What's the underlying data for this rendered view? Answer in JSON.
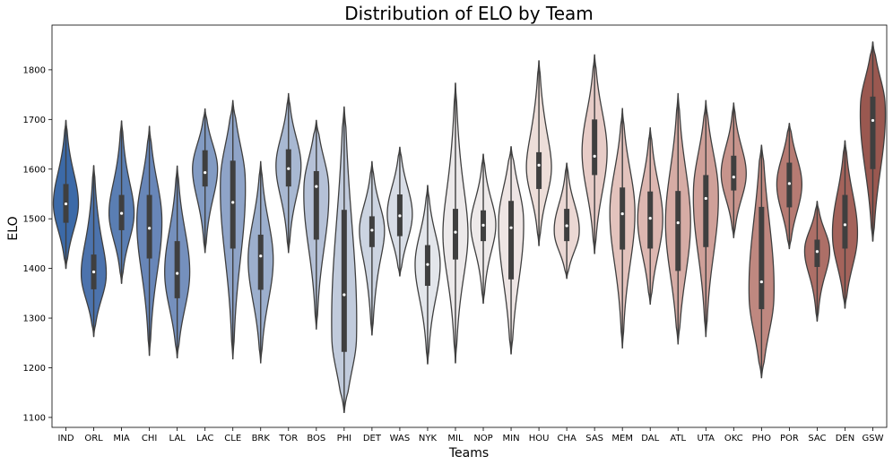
{
  "chart_data": {
    "type": "violin",
    "title": "Distribution of ELO by Team",
    "xlabel": "Teams",
    "ylabel": "ELO",
    "ylim": [
      1080,
      1890
    ],
    "yticks": [
      1100,
      1200,
      1300,
      1400,
      1500,
      1600,
      1700,
      1800
    ],
    "grid": false,
    "legend": "none",
    "teams": [
      {
        "name": "IND",
        "color": "#3c6aa8",
        "min": 1400,
        "max": 1698,
        "q1": 1492,
        "median": 1530,
        "q3": 1570,
        "mode": 1530
      },
      {
        "name": "ORL",
        "color": "#4c73ad",
        "min": 1263,
        "max": 1607,
        "q1": 1358,
        "median": 1393,
        "q3": 1428,
        "mode": 1385
      },
      {
        "name": "MIA",
        "color": "#5a7eb3",
        "min": 1370,
        "max": 1697,
        "q1": 1477,
        "median": 1511,
        "q3": 1548,
        "mode": 1510
      },
      {
        "name": "CHI",
        "color": "#6886b8",
        "min": 1225,
        "max": 1686,
        "q1": 1420,
        "median": 1481,
        "q3": 1548,
        "mode": 1500
      },
      {
        "name": "LAL",
        "color": "#7590bd",
        "min": 1220,
        "max": 1606,
        "q1": 1340,
        "median": 1390,
        "q3": 1455,
        "mode": 1390
      },
      {
        "name": "LAC",
        "color": "#829bc3",
        "min": 1432,
        "max": 1721,
        "q1": 1565,
        "median": 1593,
        "q3": 1638,
        "mode": 1600
      },
      {
        "name": "CLE",
        "color": "#8fa4c8",
        "min": 1218,
        "max": 1738,
        "q1": 1440,
        "median": 1533,
        "q3": 1617,
        "mode": 1580
      },
      {
        "name": "BRK",
        "color": "#9cafcd",
        "min": 1210,
        "max": 1615,
        "q1": 1357,
        "median": 1425,
        "q3": 1468,
        "mode": 1420
      },
      {
        "name": "TOR",
        "color": "#a8b8d2",
        "min": 1432,
        "max": 1752,
        "q1": 1565,
        "median": 1601,
        "q3": 1640,
        "mode": 1610
      },
      {
        "name": "BOS",
        "color": "#b5c1d7",
        "min": 1278,
        "max": 1698,
        "q1": 1458,
        "median": 1565,
        "q3": 1596,
        "mode": 1565
      },
      {
        "name": "PHI",
        "color": "#c1cbdc",
        "min": 1110,
        "max": 1725,
        "q1": 1232,
        "median": 1347,
        "q3": 1518,
        "mode": 1260
      },
      {
        "name": "DET",
        "color": "#ccd4e1",
        "min": 1266,
        "max": 1615,
        "q1": 1443,
        "median": 1477,
        "q3": 1505,
        "mode": 1480
      },
      {
        "name": "WAS",
        "color": "#d8dde6",
        "min": 1385,
        "max": 1644,
        "q1": 1465,
        "median": 1506,
        "q3": 1549,
        "mode": 1510
      },
      {
        "name": "NYK",
        "color": "#e3e6eb",
        "min": 1208,
        "max": 1567,
        "q1": 1365,
        "median": 1408,
        "q3": 1447,
        "mode": 1410
      },
      {
        "name": "MIL",
        "color": "#ece9ea",
        "min": 1210,
        "max": 1773,
        "q1": 1418,
        "median": 1473,
        "q3": 1520,
        "mode": 1470
      },
      {
        "name": "NOP",
        "color": "#eeeaea",
        "min": 1330,
        "max": 1630,
        "q1": 1455,
        "median": 1487,
        "q3": 1517,
        "mode": 1490
      },
      {
        "name": "MIN",
        "color": "#eee5e4",
        "min": 1228,
        "max": 1645,
        "q1": 1378,
        "median": 1482,
        "q3": 1536,
        "mode": 1500
      },
      {
        "name": "HOU",
        "color": "#edded9",
        "min": 1446,
        "max": 1818,
        "q1": 1560,
        "median": 1608,
        "q3": 1634,
        "mode": 1610
      },
      {
        "name": "CHA",
        "color": "#ebd8d4",
        "min": 1380,
        "max": 1612,
        "q1": 1455,
        "median": 1486,
        "q3": 1520,
        "mode": 1470
      },
      {
        "name": "SAS",
        "color": "#e7ccc7",
        "min": 1430,
        "max": 1830,
        "q1": 1588,
        "median": 1626,
        "q3": 1700,
        "mode": 1630
      },
      {
        "name": "MEM",
        "color": "#e3c3bd",
        "min": 1240,
        "max": 1722,
        "q1": 1438,
        "median": 1510,
        "q3": 1563,
        "mode": 1520
      },
      {
        "name": "DAL",
        "color": "#ddb7b1",
        "min": 1328,
        "max": 1683,
        "q1": 1440,
        "median": 1501,
        "q3": 1555,
        "mode": 1500
      },
      {
        "name": "ATL",
        "color": "#d6aca5",
        "min": 1248,
        "max": 1752,
        "q1": 1395,
        "median": 1492,
        "q3": 1556,
        "mode": 1500
      },
      {
        "name": "UTA",
        "color": "#cfa099",
        "min": 1263,
        "max": 1738,
        "q1": 1443,
        "median": 1541,
        "q3": 1588,
        "mode": 1560
      },
      {
        "name": "OKC",
        "color": "#c7948c",
        "min": 1462,
        "max": 1733,
        "q1": 1557,
        "median": 1584,
        "q3": 1627,
        "mode": 1590
      },
      {
        "name": "PHO",
        "color": "#bf8880",
        "min": 1180,
        "max": 1648,
        "q1": 1318,
        "median": 1373,
        "q3": 1524,
        "mode": 1340
      },
      {
        "name": "POR",
        "color": "#b67b73",
        "min": 1440,
        "max": 1692,
        "q1": 1523,
        "median": 1571,
        "q3": 1613,
        "mode": 1570
      },
      {
        "name": "SAC",
        "color": "#ad6f67",
        "min": 1294,
        "max": 1535,
        "q1": 1403,
        "median": 1434,
        "q3": 1458,
        "mode": 1440
      },
      {
        "name": "DEN",
        "color": "#a4635b",
        "min": 1320,
        "max": 1657,
        "q1": 1440,
        "median": 1488,
        "q3": 1548,
        "mode": 1460
      },
      {
        "name": "GSW",
        "color": "#9a5850",
        "min": 1455,
        "max": 1856,
        "q1": 1600,
        "median": 1698,
        "q3": 1746,
        "mode": 1730
      }
    ]
  }
}
